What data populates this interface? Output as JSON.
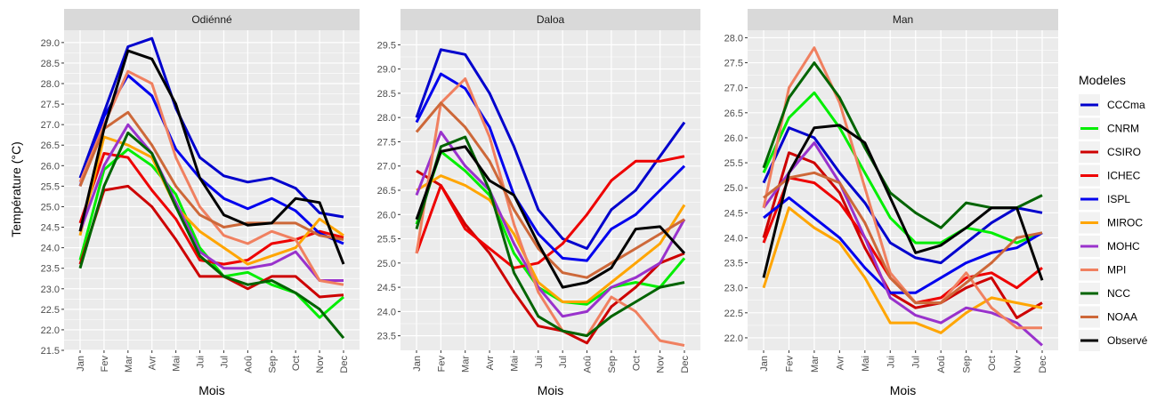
{
  "chart_data": {
    "type": "line",
    "ylabel": "Température (°C)",
    "xlabel": "Mois",
    "months": [
      "Jan",
      "Fev",
      "Mar",
      "Avr",
      "Mai",
      "Jui",
      "Jul",
      "Aoû",
      "Sep",
      "Oct",
      "Nov",
      "Dec"
    ],
    "legend": {
      "title": "Modeles",
      "placement": "right",
      "entries": [
        {
          "name": "CCCma",
          "color": "#0000cd"
        },
        {
          "name": "CNRM",
          "color": "#00ee00"
        },
        {
          "name": "CSIRO",
          "color": "#cd0000"
        },
        {
          "name": "ICHEC",
          "color": "#ee0000"
        },
        {
          "name": "ISPL",
          "color": "#0000ee"
        },
        {
          "name": "MIROC",
          "color": "#ffa500"
        },
        {
          "name": "MOHC",
          "color": "#9932cc"
        },
        {
          "name": "MPI",
          "color": "#f08060"
        },
        {
          "name": "NCC",
          "color": "#006400"
        },
        {
          "name": "NOAA",
          "color": "#cd6839"
        },
        {
          "name": "Observé",
          "color": "#000000"
        }
      ]
    },
    "panels": [
      {
        "title": "Odiénné",
        "ylim": [
          21.5,
          29.3
        ],
        "yticks": [
          "21.5",
          "22.0",
          "22.5",
          "23.0",
          "23.5",
          "24.0",
          "24.5",
          "25.0",
          "25.5",
          "26.0",
          "26.5",
          "27.0",
          "27.5",
          "28.0",
          "28.5",
          "29.0"
        ],
        "series": [
          {
            "name": "CCCma",
            "values": [
              25.7,
              27.3,
              28.9,
              29.1,
              27.4,
              26.2,
              25.75,
              25.6,
              25.7,
              25.45,
              24.85,
              24.75
            ]
          },
          {
            "name": "CNRM",
            "values": [
              23.7,
              25.9,
              26.4,
              26.0,
              25.3,
              24.0,
              23.3,
              23.4,
              23.1,
              22.9,
              22.3,
              22.8
            ]
          },
          {
            "name": "CSIRO",
            "values": [
              23.6,
              25.4,
              25.5,
              25.0,
              24.2,
              23.3,
              23.3,
              23.0,
              23.3,
              23.3,
              22.8,
              22.85
            ]
          },
          {
            "name": "ICHEC",
            "values": [
              24.6,
              26.3,
              26.2,
              25.4,
              24.7,
              23.7,
              23.6,
              23.7,
              24.1,
              24.2,
              24.4,
              24.25
            ]
          },
          {
            "name": "ISPL",
            "values": [
              25.5,
              27.2,
              28.2,
              27.7,
              26.4,
              25.7,
              25.2,
              24.95,
              25.2,
              24.9,
              24.35,
              24.1
            ]
          },
          {
            "name": "MIROC",
            "values": [
              24.3,
              26.7,
              26.5,
              26.2,
              25.0,
              24.4,
              24.0,
              23.6,
              23.8,
              24.0,
              24.7,
              24.3
            ]
          },
          {
            "name": "MOHC",
            "values": [
              24.4,
              26.0,
              27.0,
              26.3,
              25.1,
              23.9,
              23.5,
              23.5,
              23.6,
              23.9,
              23.2,
              23.2
            ]
          },
          {
            "name": "MPI",
            "values": [
              25.6,
              27.0,
              28.3,
              28.0,
              26.2,
              25.0,
              24.3,
              24.1,
              24.4,
              24.2,
              23.2,
              23.1
            ]
          },
          {
            "name": "NCC",
            "values": [
              23.5,
              25.5,
              26.8,
              26.3,
              25.0,
              23.8,
              23.3,
              23.1,
              23.2,
              22.9,
              22.5,
              21.8
            ]
          },
          {
            "name": "NOAA",
            "values": [
              25.5,
              26.9,
              27.3,
              26.5,
              25.5,
              24.8,
              24.5,
              24.6,
              24.6,
              24.6,
              24.3,
              24.2
            ]
          },
          {
            "name": "Observé",
            "values": [
              24.4,
              26.9,
              28.8,
              28.6,
              27.5,
              25.7,
              24.8,
              24.55,
              24.6,
              25.2,
              25.1,
              23.6
            ]
          }
        ]
      },
      {
        "title": "Daloa",
        "ylim": [
          23.2,
          29.8
        ],
        "yticks": [
          "23.5",
          "24.0",
          "24.5",
          "25.0",
          "25.5",
          "26.0",
          "26.5",
          "27.0",
          "27.5",
          "28.0",
          "28.5",
          "29.0",
          "29.5"
        ],
        "series": [
          {
            "name": "CCCma",
            "values": [
              28.0,
              29.4,
              29.3,
              28.5,
              27.4,
              26.1,
              25.5,
              25.3,
              26.1,
              26.5,
              27.2,
              27.9
            ]
          },
          {
            "name": "CNRM",
            "values": [
              25.8,
              27.3,
              26.9,
              26.4,
              25.2,
              24.5,
              24.2,
              24.15,
              24.5,
              24.6,
              24.5,
              25.1
            ]
          },
          {
            "name": "CSIRO",
            "values": [
              26.9,
              26.6,
              25.8,
              25.2,
              24.4,
              23.7,
              23.6,
              23.35,
              24.1,
              24.5,
              25.0,
              25.2
            ]
          },
          {
            "name": "ICHEC",
            "values": [
              25.2,
              26.6,
              25.7,
              25.3,
              24.9,
              25.0,
              25.4,
              26.0,
              26.7,
              27.1,
              27.1,
              27.2
            ]
          },
          {
            "name": "ISPL",
            "values": [
              27.9,
              28.9,
              28.6,
              27.8,
              26.4,
              25.6,
              25.1,
              25.05,
              25.7,
              26.0,
              26.5,
              27.0
            ]
          },
          {
            "name": "MIROC",
            "values": [
              26.5,
              26.8,
              26.6,
              26.3,
              25.6,
              24.6,
              24.2,
              24.2,
              24.6,
              25.0,
              25.4,
              26.2
            ]
          },
          {
            "name": "MOHC",
            "values": [
              26.4,
              27.7,
              27.0,
              26.5,
              25.4,
              24.5,
              23.9,
              24.0,
              24.5,
              24.7,
              25.0,
              25.9
            ]
          },
          {
            "name": "MPI",
            "values": [
              25.2,
              28.3,
              28.8,
              27.6,
              25.8,
              24.4,
              23.6,
              23.5,
              24.3,
              24.0,
              23.4,
              23.3
            ]
          },
          {
            "name": "NCC",
            "values": [
              25.7,
              27.4,
              27.6,
              26.5,
              24.8,
              23.9,
              23.6,
              23.5,
              23.9,
              24.2,
              24.5,
              24.6
            ]
          },
          {
            "name": "NOAA",
            "values": [
              27.7,
              28.3,
              27.8,
              27.1,
              26.1,
              25.3,
              24.8,
              24.7,
              25.0,
              25.3,
              25.6,
              25.9
            ]
          },
          {
            "name": "Observé",
            "values": [
              25.9,
              27.3,
              27.4,
              26.7,
              26.4,
              25.4,
              24.5,
              24.6,
              24.9,
              25.7,
              25.75,
              25.2
            ]
          }
        ]
      },
      {
        "title": "Man",
        "ylim": [
          21.75,
          28.15
        ],
        "yticks": [
          "22.0",
          "22.5",
          "23.0",
          "23.5",
          "24.0",
          "24.5",
          "25.0",
          "25.5",
          "26.0",
          "26.5",
          "27.0",
          "27.5",
          "28.0"
        ],
        "series": [
          {
            "name": "CCCma",
            "values": [
              25.1,
              26.2,
              26.0,
              25.3,
              24.7,
              23.9,
              23.6,
              23.5,
              23.9,
              24.3,
              24.6,
              24.5
            ]
          },
          {
            "name": "CNRM",
            "values": [
              25.3,
              26.4,
              26.9,
              26.2,
              25.3,
              24.4,
              23.9,
              23.9,
              24.2,
              24.1,
              23.9,
              24.1
            ]
          },
          {
            "name": "CSIRO",
            "values": [
              24.0,
              25.7,
              25.5,
              24.9,
              23.8,
              22.9,
              22.6,
              22.7,
              23.0,
              23.2,
              22.4,
              22.7
            ]
          },
          {
            "name": "ICHEC",
            "values": [
              23.9,
              25.2,
              25.1,
              24.7,
              24.0,
              23.2,
              22.7,
              22.8,
              23.2,
              23.3,
              23.0,
              23.4
            ]
          },
          {
            "name": "ISPL",
            "values": [
              24.4,
              24.8,
              24.4,
              24.0,
              23.4,
              22.9,
              22.9,
              23.2,
              23.5,
              23.7,
              23.8,
              24.1
            ]
          },
          {
            "name": "MIROC",
            "values": [
              23.0,
              24.6,
              24.2,
              23.9,
              23.2,
              22.3,
              22.3,
              22.1,
              22.5,
              22.8,
              22.7,
              22.6
            ]
          },
          {
            "name": "MOHC",
            "values": [
              24.6,
              25.3,
              25.9,
              25.1,
              24.0,
              22.8,
              22.45,
              22.3,
              22.6,
              22.5,
              22.3,
              21.85
            ]
          },
          {
            "name": "MPI",
            "values": [
              24.6,
              27.0,
              27.8,
              26.7,
              25.0,
              23.3,
              22.7,
              22.7,
              23.3,
              22.6,
              22.2,
              22.2
            ]
          },
          {
            "name": "NCC",
            "values": [
              25.4,
              26.8,
              27.5,
              26.8,
              25.8,
              24.9,
              24.5,
              24.2,
              24.7,
              24.6,
              24.6,
              24.85
            ]
          },
          {
            "name": "NOAA",
            "values": [
              24.8,
              25.2,
              25.3,
              25.1,
              24.3,
              23.2,
              22.7,
              22.7,
              23.1,
              23.5,
              24.0,
              24.1
            ]
          },
          {
            "name": "Observé",
            "values": [
              23.2,
              25.3,
              26.2,
              26.25,
              25.9,
              24.8,
              23.7,
              23.85,
              24.2,
              24.6,
              24.6,
              23.15
            ]
          }
        ]
      }
    ]
  }
}
